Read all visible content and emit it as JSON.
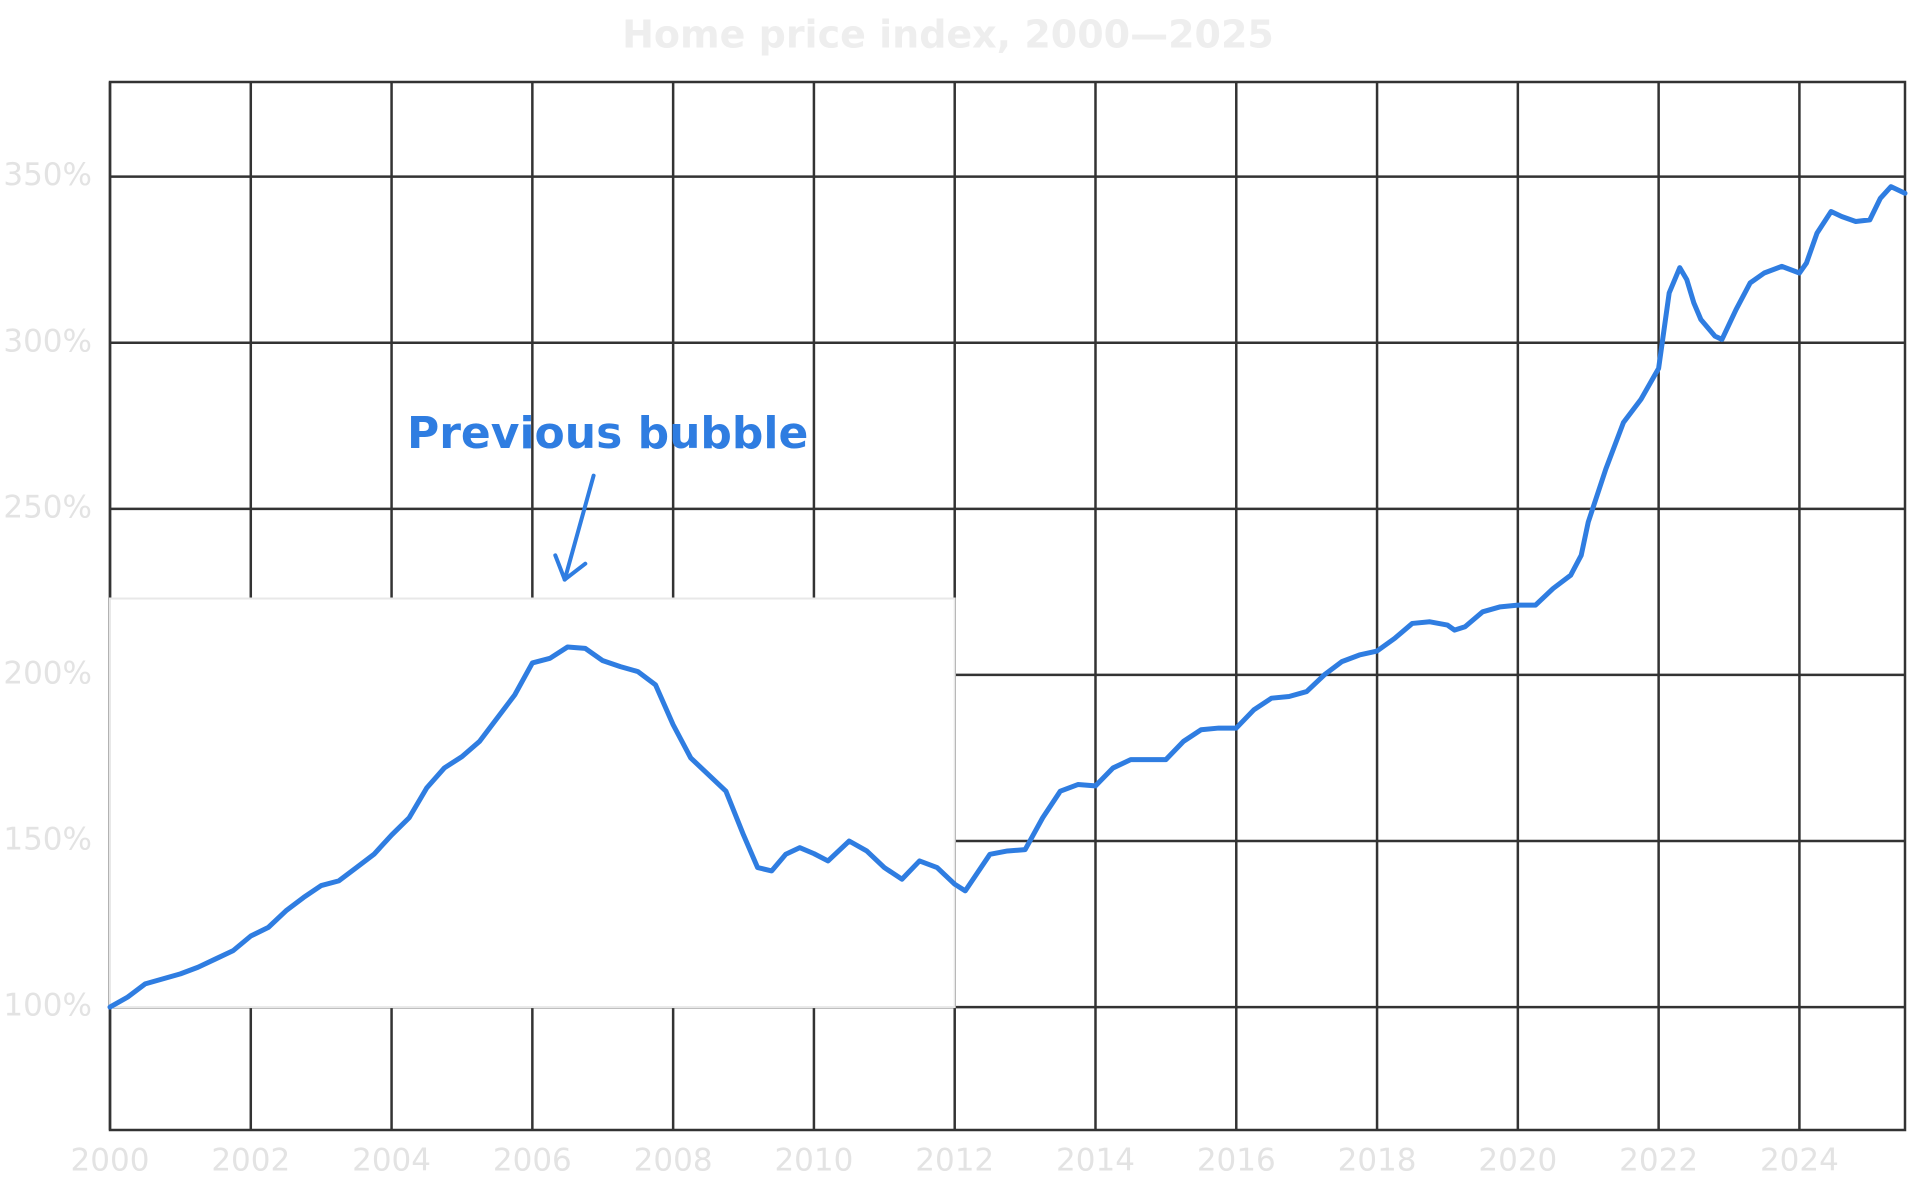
{
  "chart_data": {
    "type": "line",
    "title": "Home price index, 2000—2025",
    "x": [
      2000,
      2000.25,
      2000.5,
      2000.75,
      2001,
      2001.25,
      2001.5,
      2001.75,
      2002,
      2002.25,
      2002.5,
      2002.75,
      2003,
      2003.25,
      2003.5,
      2003.75,
      2004,
      2004.25,
      2004.5,
      2004.75,
      2005,
      2005.25,
      2005.5,
      2005.75,
      2006,
      2006.25,
      2006.5,
      2006.75,
      2007,
      2007.25,
      2007.5,
      2007.75,
      2008,
      2008.25,
      2008.5,
      2008.75,
      2009,
      2009.2,
      2009.4,
      2009.6,
      2009.8,
      2010,
      2010.2,
      2010.5,
      2010.75,
      2011,
      2011.25,
      2011.5,
      2011.75,
      2012,
      2012.15,
      2012.5,
      2012.75,
      2013,
      2013.25,
      2013.5,
      2013.75,
      2014,
      2014.25,
      2014.5,
      2014.75,
      2015,
      2015.25,
      2015.5,
      2015.75,
      2016,
      2016.25,
      2016.5,
      2016.75,
      2017,
      2017.25,
      2017.5,
      2017.75,
      2018,
      2018.25,
      2018.5,
      2018.75,
      2019,
      2019.1,
      2019.25,
      2019.5,
      2019.75,
      2020,
      2020.25,
      2020.5,
      2020.75,
      2020.9,
      2021,
      2021.25,
      2021.5,
      2021.75,
      2022,
      2022.15,
      2022.3,
      2022.4,
      2022.5,
      2022.6,
      2022.8,
      2022.9,
      2023.1,
      2023.3,
      2023.5,
      2023.75,
      2024,
      2024.1,
      2024.25,
      2024.45,
      2024.6,
      2024.8,
      2025,
      2025.15,
      2025.3,
      2025.5
    ],
    "series": [
      {
        "color": "#2f7de1",
        "values": [
          100,
          103,
          107,
          108.5,
          110,
          112,
          114.5,
          117,
          121.4,
          124,
          129,
          133,
          136.6,
          138,
          142,
          146,
          151.8,
          157,
          166,
          172,
          175.4,
          180,
          187,
          194,
          203.6,
          205,
          208.4,
          208,
          204.3,
          202.5,
          201,
          197,
          185,
          175,
          170,
          165,
          151.8,
          142,
          141,
          146,
          148,
          146.2,
          144,
          150,
          147,
          142,
          138.5,
          144,
          142,
          137,
          135,
          146,
          147,
          147.4,
          157,
          165,
          167,
          166.6,
          172,
          174.5,
          174.5,
          174.5,
          180,
          183.5,
          184,
          184,
          189.5,
          193,
          193.5,
          195,
          200,
          204,
          206,
          207.2,
          211,
          215.5,
          216,
          215,
          213.5,
          214.5,
          219,
          220.5,
          221,
          221,
          226,
          230,
          236,
          246,
          262,
          276,
          283,
          292.3,
          315,
          322.6,
          319,
          312,
          307,
          302,
          301,
          310,
          318,
          321,
          323,
          321,
          324,
          333,
          339.5,
          338,
          336.5,
          337,
          343.5,
          347,
          345
        ]
      }
    ],
    "xlim": [
      2000,
      2025.5
    ],
    "ylim": [
      63,
      378.5
    ],
    "xticks": [
      2000,
      2002,
      2004,
      2006,
      2008,
      2010,
      2012,
      2014,
      2016,
      2018,
      2020,
      2022,
      2024
    ],
    "yticks": [
      {
        "value": 100,
        "label": "100%"
      },
      {
        "value": 150,
        "label": "150%"
      },
      {
        "value": 200,
        "label": "200%"
      },
      {
        "value": 250,
        "label": "250%"
      },
      {
        "value": 300,
        "label": "300%"
      },
      {
        "value": 350,
        "label": "350%"
      }
    ],
    "grid": true,
    "highlight": {
      "x": [
        2000,
        2012
      ],
      "y": [
        100,
        223
      ]
    },
    "annotation": {
      "text": "Previous bubble",
      "x": 2007.07,
      "y": 272,
      "arrow_from": [
        2006.87,
        260
      ],
      "arrow_to": [
        2006.46,
        228.7
      ],
      "color": "#2f7de1"
    }
  }
}
